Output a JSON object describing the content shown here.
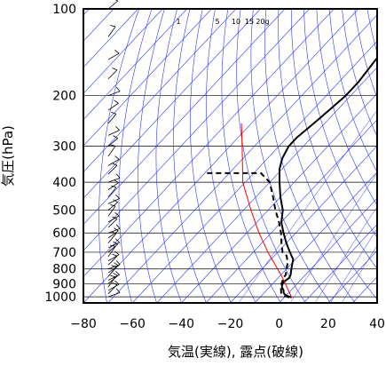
{
  "chart_data": {
    "type": "line",
    "title": "",
    "xlabel": "気温(実線), 露点(破線)",
    "ylabel": "気圧(hPa)",
    "x_axis": {
      "min": -80,
      "max": 40,
      "ticks": [
        -80,
        -60,
        -40,
        -20,
        0,
        20,
        40
      ]
    },
    "y_axis": {
      "scale": "log",
      "min": 100,
      "max": 1050,
      "ticks": [
        100,
        200,
        300,
        400,
        500,
        600,
        700,
        800,
        900,
        1000
      ]
    },
    "grid": true,
    "skew_per_decade_C": 110,
    "dry_adiabat_thetas_K": [
      200,
      210,
      220,
      230,
      240,
      250,
      260,
      270,
      280,
      290,
      300,
      310,
      320,
      330,
      340,
      350,
      360,
      370,
      380,
      390,
      400,
      410,
      420,
      430,
      440,
      450,
      460,
      470,
      480,
      490,
      500,
      510,
      520,
      530,
      540,
      560,
      580,
      600
    ],
    "mixing_ratio_labels": [
      "1",
      "5",
      "10",
      "15",
      "20g"
    ],
    "mixing_ratio_values": [
      1,
      5,
      10,
      15,
      20
    ],
    "series": [
      {
        "values": [
          {
            "p": 1005,
            "t": 3
          },
          {
            "p": 990,
            "t": 0
          },
          {
            "p": 970,
            "t": -2
          },
          {
            "p": 950,
            "t": -3
          },
          {
            "p": 925,
            "t": -5
          },
          {
            "p": 900,
            "t": -6
          },
          {
            "p": 880,
            "t": -6
          },
          {
            "p": 860,
            "t": -5.5
          },
          {
            "p": 840,
            "t": -6
          },
          {
            "p": 820,
            "t": -7
          },
          {
            "p": 800,
            "t": -8
          },
          {
            "p": 780,
            "t": -9
          },
          {
            "p": 760,
            "t": -10
          },
          {
            "p": 740,
            "t": -11
          },
          {
            "p": 720,
            "t": -13
          },
          {
            "p": 700,
            "t": -15
          },
          {
            "p": 650,
            "t": -20
          },
          {
            "p": 600,
            "t": -25
          },
          {
            "p": 550,
            "t": -30
          },
          {
            "p": 500,
            "t": -34
          },
          {
            "p": 450,
            "t": -40
          },
          {
            "p": 400,
            "t": -46
          },
          {
            "p": 360,
            "t": -51
          },
          {
            "p": 330,
            "t": -54
          },
          {
            "p": 300,
            "t": -56
          },
          {
            "p": 280,
            "t": -56
          },
          {
            "p": 260,
            "t": -55
          },
          {
            "p": 240,
            "t": -54
          },
          {
            "p": 220,
            "t": -53
          },
          {
            "p": 200,
            "t": -52
          },
          {
            "p": 180,
            "t": -52
          },
          {
            "p": 160,
            "t": -53
          },
          {
            "p": 140,
            "t": -54
          },
          {
            "p": 120,
            "t": -55
          },
          {
            "p": 100,
            "t": -57
          }
        ]
      },
      {
        "values": [
          {
            "p": 1005,
            "t": 2
          },
          {
            "p": 990,
            "t": -1
          },
          {
            "p": 970,
            "t": -3
          },
          {
            "p": 950,
            "t": -4
          },
          {
            "p": 925,
            "t": -5.5
          },
          {
            "p": 900,
            "t": -6.5
          },
          {
            "p": 880,
            "t": -7
          },
          {
            "p": 860,
            "t": -8
          },
          {
            "p": 840,
            "t": -8
          },
          {
            "p": 800,
            "t": -10
          },
          {
            "p": 760,
            "t": -12
          },
          {
            "p": 720,
            "t": -15
          },
          {
            "p": 700,
            "t": -18
          },
          {
            "p": 650,
            "t": -22
          },
          {
            "p": 600,
            "t": -26
          },
          {
            "p": 550,
            "t": -31
          },
          {
            "p": 500,
            "t": -37
          },
          {
            "p": 450,
            "t": -43
          },
          {
            "p": 400,
            "t": -50
          },
          {
            "p": 380,
            "t": -55
          },
          {
            "p": 372,
            "t": -57
          },
          {
            "p": 372,
            "t": -80
          }
        ]
      },
      {
        "values": [
          {
            "p": 1005,
            "t": 3
          },
          {
            "p": 850,
            "t": -9
          },
          {
            "p": 700,
            "t": -24
          },
          {
            "p": 600,
            "t": -35
          },
          {
            "p": 500,
            "t": -47
          },
          {
            "p": 400,
            "t": -61
          },
          {
            "p": 300,
            "t": -75
          },
          {
            "p": 250,
            "t": -84
          }
        ]
      }
    ]
  }
}
